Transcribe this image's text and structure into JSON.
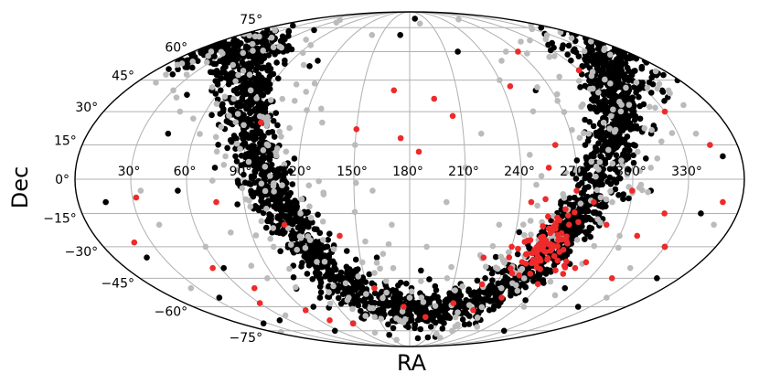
{
  "chart_data": {
    "type": "scatter",
    "projection": "mollweide",
    "xlabel": "RA",
    "ylabel": "Dec",
    "grid": true,
    "xlim": [
      0,
      360
    ],
    "ylim": [
      -90,
      90
    ],
    "ra_ticks": [
      {
        "value": 30,
        "label": "30°"
      },
      {
        "value": 60,
        "label": "60°"
      },
      {
        "value": 90,
        "label": "90°"
      },
      {
        "value": 120,
        "label": "120°"
      },
      {
        "value": 150,
        "label": "150°"
      },
      {
        "value": 180,
        "label": "180°"
      },
      {
        "value": 210,
        "label": "210°"
      },
      {
        "value": 240,
        "label": "240°"
      },
      {
        "value": 270,
        "label": "270°"
      },
      {
        "value": 300,
        "label": "300°"
      },
      {
        "value": 330,
        "label": "330°"
      }
    ],
    "dec_ticks": [
      {
        "value": 75,
        "label": "75°"
      },
      {
        "value": 60,
        "label": "60°"
      },
      {
        "value": 45,
        "label": "45°"
      },
      {
        "value": 30,
        "label": "30°"
      },
      {
        "value": 15,
        "label": "15°"
      },
      {
        "value": 0,
        "label": "0°"
      },
      {
        "value": -15,
        "label": "−15°"
      },
      {
        "value": -30,
        "label": "−30°"
      },
      {
        "value": -45,
        "label": "−45°"
      },
      {
        "value": -60,
        "label": "−60°"
      },
      {
        "value": -75,
        "label": "−75°"
      }
    ],
    "colors": {
      "black": "#000000",
      "gray": "#bbbbbb",
      "red": "#ee2a2a",
      "grid": "#b0b0b0",
      "frame": "#000000"
    },
    "series": [
      {
        "color_key": "black",
        "band": {
          "pole_ra": 192.9,
          "pole_dec": 27.1,
          "width_deg": 6,
          "n": 2400,
          "seed": 11
        },
        "points": [
          [
            20,
            -35
          ],
          [
            35,
            -55
          ],
          [
            50,
            -68
          ],
          [
            62,
            -40
          ],
          [
            85,
            -75
          ],
          [
            15,
            -10
          ],
          [
            45,
            20
          ],
          [
            60,
            40
          ],
          [
            40,
            55
          ],
          [
            75,
            60
          ],
          [
            330,
            -30
          ],
          [
            320,
            -60
          ],
          [
            300,
            -75
          ],
          [
            340,
            -15
          ],
          [
            350,
            10
          ],
          [
            335,
            35
          ],
          [
            300,
            50
          ],
          [
            315,
            20
          ],
          [
            290,
            -50
          ],
          [
            250,
            -70
          ],
          [
            210,
            -80
          ],
          [
            150,
            -78
          ],
          [
            120,
            -70
          ],
          [
            100,
            -60
          ],
          [
            170,
            70
          ],
          [
            190,
            82
          ],
          [
            110,
            55
          ],
          [
            220,
            60
          ],
          [
            260,
            40
          ],
          [
            280,
            10
          ],
          [
            200,
            -55
          ],
          [
            230,
            -40
          ],
          [
            140,
            -50
          ],
          [
            160,
            -35
          ],
          [
            95,
            30
          ],
          [
            75,
            5
          ],
          [
            55,
            -5
          ],
          [
            25,
            -70
          ],
          [
            345,
            -45
          ],
          [
            310,
            -5
          ]
        ]
      },
      {
        "color_key": "gray",
        "band": {
          "pole_ra": 192.9,
          "pole_dec": 27.1,
          "width_deg": 14,
          "n": 320,
          "seed": 23
        },
        "points": [
          [
            30,
            40
          ],
          [
            45,
            30
          ],
          [
            25,
            -50
          ],
          [
            40,
            -20
          ],
          [
            65,
            -65
          ],
          [
            80,
            10
          ],
          [
            110,
            35
          ],
          [
            130,
            25
          ],
          [
            150,
            15
          ],
          [
            160,
            -5
          ],
          [
            170,
            -20
          ],
          [
            190,
            -30
          ],
          [
            200,
            -10
          ],
          [
            210,
            5
          ],
          [
            220,
            20
          ],
          [
            240,
            45
          ],
          [
            250,
            55
          ],
          [
            260,
            60
          ],
          [
            270,
            35
          ],
          [
            280,
            20
          ],
          [
            290,
            -10
          ],
          [
            300,
            -25
          ],
          [
            310,
            5
          ],
          [
            320,
            -40
          ],
          [
            330,
            -55
          ],
          [
            340,
            20
          ],
          [
            350,
            -20
          ],
          [
            15,
            60
          ],
          [
            195,
            78
          ],
          [
            140,
            70
          ],
          [
            100,
            -30
          ],
          [
            120,
            -15
          ],
          [
            85,
            -45
          ],
          [
            60,
            -30
          ],
          [
            35,
            -5
          ],
          [
            230,
            -20
          ],
          [
            245,
            -50
          ],
          [
            275,
            -60
          ],
          [
            205,
            -45
          ],
          [
            180,
            -55
          ]
        ]
      },
      {
        "color_key": "red",
        "cluster": {
          "ra": 262,
          "dec": -29,
          "spread_deg": 7,
          "n": 85,
          "seed": 37
        },
        "points": [
          [
            32,
            -8
          ],
          [
            55,
            -40
          ],
          [
            70,
            -50
          ],
          [
            60,
            -58
          ],
          [
            90,
            -62
          ],
          [
            100,
            -68
          ],
          [
            120,
            -70
          ],
          [
            155,
            -50
          ],
          [
            175,
            -60
          ],
          [
            195,
            -66
          ],
          [
            215,
            -58
          ],
          [
            230,
            -48
          ],
          [
            240,
            -30
          ],
          [
            246,
            -10
          ],
          [
            255,
            5
          ],
          [
            260,
            15
          ],
          [
            270,
            -5
          ],
          [
            280,
            -10
          ],
          [
            290,
            -20
          ],
          [
            300,
            -5
          ],
          [
            310,
            -25
          ],
          [
            320,
            -15
          ],
          [
            330,
            -30
          ],
          [
            345,
            15
          ],
          [
            330,
            30
          ],
          [
            300,
            50
          ],
          [
            270,
            60
          ],
          [
            245,
            42
          ],
          [
            170,
            40
          ],
          [
            195,
            36
          ],
          [
            205,
            28
          ],
          [
            150,
            22
          ],
          [
            185,
            12
          ],
          [
            175,
            18
          ],
          [
            20,
            -28
          ],
          [
            110,
            -20
          ],
          [
            140,
            -25
          ],
          [
            225,
            -35
          ],
          [
            235,
            -62
          ],
          [
            250,
            -55
          ],
          [
            95,
            25
          ],
          [
            75,
            -10
          ],
          [
            350,
            -10
          ],
          [
            315,
            -45
          ],
          [
            285,
            -40
          ]
        ]
      }
    ]
  }
}
